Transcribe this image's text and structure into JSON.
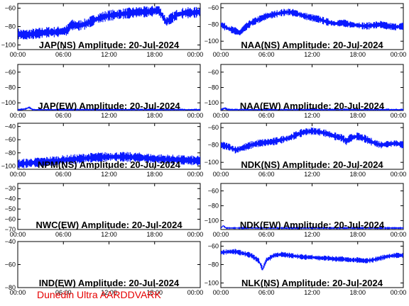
{
  "footer": "Dunedin Ultra AARDDVARK",
  "colors": {
    "series": "#0a1aff",
    "frame": "#000000",
    "footer": "#e60000"
  },
  "x_ticks": [
    "00:00",
    "06:00",
    "12:00",
    "18:00",
    "00:00"
  ],
  "chart_data": [
    {
      "type": "line",
      "title": "JAP(NS) Amplitude: 20-Jul-2024",
      "ylim": [
        -105,
        -55
      ],
      "yticks": [
        -100,
        -80,
        -60
      ],
      "x": [
        0,
        1,
        2,
        3,
        4,
        5,
        6,
        6.5,
        7,
        8,
        9,
        10,
        11,
        12,
        13,
        14,
        15,
        16,
        17,
        18,
        18.5,
        19,
        19.5,
        20,
        21,
        22,
        23,
        24
      ],
      "values": [
        -88,
        -89,
        -88,
        -87,
        -86,
        -86,
        -85,
        -84,
        -78,
        -79,
        -77,
        -73,
        -70,
        -68,
        -67,
        -66,
        -65,
        -64,
        -64,
        -63,
        -62,
        -68,
        -75,
        -72,
        -67,
        -65,
        -65,
        -64
      ],
      "band": 4
    },
    {
      "type": "line",
      "title": "NAA(NS) Amplitude: 20-Jul-2024",
      "ylim": [
        -110,
        -55
      ],
      "yticks": [
        -100,
        -80,
        -60
      ],
      "x": [
        0,
        1,
        2,
        2.5,
        3,
        4,
        5,
        6,
        7,
        8,
        9,
        10,
        11,
        12,
        13,
        14,
        15,
        16,
        17,
        18,
        19,
        20,
        21,
        22,
        23,
        24
      ],
      "values": [
        -80,
        -85,
        -88,
        -90,
        -85,
        -78,
        -74,
        -70,
        -68,
        -66,
        -65,
        -67,
        -70,
        -72,
        -74,
        -77,
        -79,
        -78,
        -80,
        -81,
        -82,
        -81,
        -80,
        -82,
        -83,
        -82
      ],
      "band": 3
    },
    {
      "type": "line",
      "title": "JAP(EW) Amplitude: 20-Jul-2024",
      "ylim": [
        -110,
        -50
      ],
      "yticks": [
        -100,
        -80,
        -60
      ],
      "x": [
        0,
        1,
        1.5,
        2,
        24
      ],
      "values": [
        -109,
        -108,
        -106,
        -109,
        -109
      ],
      "band": 1
    },
    {
      "type": "line",
      "title": "NAA(EW) Amplitude: 20-Jul-2024",
      "ylim": [
        -110,
        -50
      ],
      "yticks": [
        -100,
        -80,
        -60
      ],
      "x": [
        0,
        0.5,
        1,
        24
      ],
      "values": [
        -109,
        -107,
        -109,
        -109
      ],
      "band": 1
    },
    {
      "type": "line",
      "title": "NPM(NS) Amplitude: 20-Jul-2024",
      "ylim": [
        -105,
        -35
      ],
      "yticks": [
        -100,
        -80,
        -60,
        -40
      ],
      "x": [
        0,
        1,
        2,
        3,
        4,
        6,
        8,
        10,
        12,
        14,
        16,
        18,
        20,
        22,
        24
      ],
      "values": [
        -97,
        -96,
        -95,
        -94,
        -93,
        -91,
        -89,
        -87,
        -86,
        -86,
        -87,
        -89,
        -90,
        -91,
        -92
      ],
      "band": 5
    },
    {
      "type": "line",
      "title": "NDK(NS) Amplitude: 20-Jul-2024",
      "ylim": [
        -108,
        -55
      ],
      "yticks": [
        -100,
        -80,
        -60
      ],
      "x": [
        0,
        1,
        2,
        3,
        4,
        5,
        6,
        7,
        8,
        9,
        10,
        11,
        12,
        13,
        14,
        15,
        16,
        16.5,
        17,
        18,
        19,
        20,
        21,
        22,
        23,
        24
      ],
      "values": [
        -80,
        -82,
        -86,
        -83,
        -80,
        -78,
        -77,
        -76,
        -74,
        -72,
        -68,
        -65,
        -64,
        -65,
        -67,
        -70,
        -72,
        -76,
        -72,
        -70,
        -73,
        -77,
        -80,
        -79,
        -78,
        -80
      ],
      "band": 3
    },
    {
      "type": "line",
      "title": "NWC(EW) Amplitude: 20-Jul-2024",
      "ylim": [
        -70,
        -25
      ],
      "yticks": [
        -70,
        -60,
        -50,
        -40,
        -30
      ],
      "x": [],
      "values": [],
      "band": 0
    },
    {
      "type": "line",
      "title": "NDK(EW) Amplitude: 20-Jul-2024",
      "ylim": [
        -112,
        -50
      ],
      "yticks": [
        -100,
        -80,
        -60
      ],
      "x": [
        0,
        0.3,
        0.7,
        1,
        24
      ],
      "values": [
        -110,
        -107,
        -110,
        -110,
        -110
      ],
      "band": 1
    },
    {
      "type": "line",
      "title": "IND(EW) Amplitude: 20-Jul-2024",
      "ylim": [
        -80,
        -40
      ],
      "yticks": [
        -80,
        -60,
        -40
      ],
      "x": [],
      "values": [],
      "band": 0
    },
    {
      "type": "line",
      "title": "NLK(NS) Amplitude: 20-Jul-2024",
      "ylim": [
        -105,
        -55
      ],
      "yticks": [
        -100,
        -80,
        -60
      ],
      "x": [
        0,
        1,
        2,
        3,
        4,
        5,
        5.5,
        6,
        7,
        8,
        9,
        10,
        11,
        12,
        13,
        14,
        15,
        16,
        17,
        18,
        19,
        20,
        21,
        22,
        23,
        24
      ],
      "values": [
        -67,
        -66,
        -66,
        -68,
        -70,
        -76,
        -85,
        -75,
        -70,
        -69,
        -70,
        -71,
        -72,
        -72,
        -73,
        -73,
        -74,
        -74,
        -75,
        -75,
        -76,
        -75,
        -73,
        -71,
        -70,
        -70
      ],
      "band": 2
    }
  ]
}
